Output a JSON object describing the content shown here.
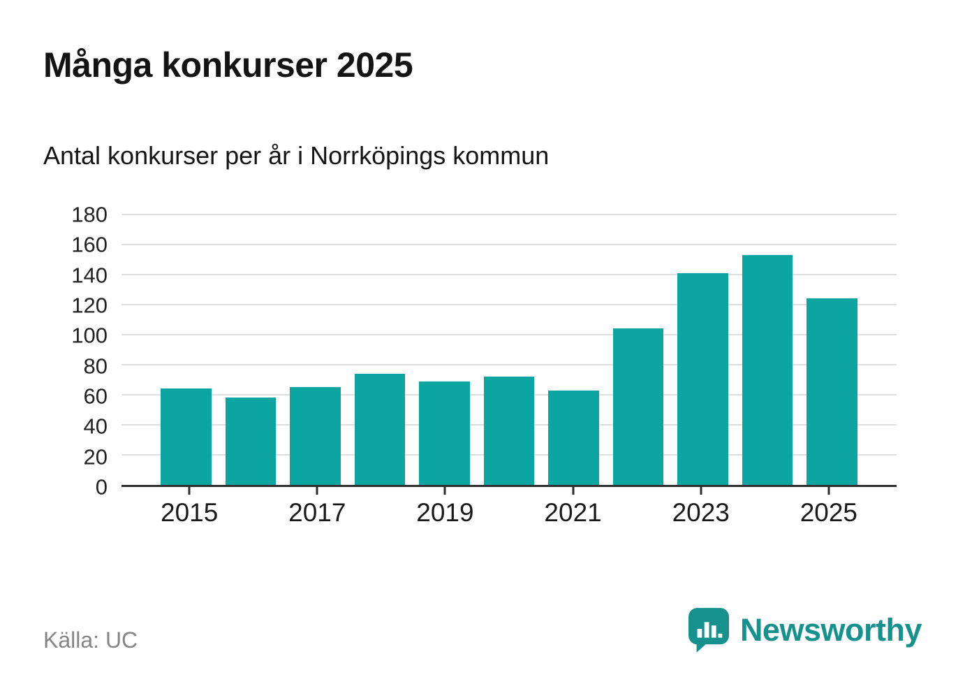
{
  "header": {
    "title": "Många konkurser 2025",
    "subtitle": "Antal konkurser per år i Norrköpings kommun"
  },
  "chart_data": {
    "type": "bar",
    "title": "Många konkurser 2025",
    "subtitle": "Antal konkurser per år i Norrköpings kommun",
    "categories": [
      "2015",
      "2016",
      "2017",
      "2018",
      "2019",
      "2020",
      "2021",
      "2022",
      "2023",
      "2024",
      "2025"
    ],
    "values": [
      64,
      58,
      65,
      74,
      69,
      72,
      63,
      104,
      141,
      153,
      124
    ],
    "xlabel": "",
    "ylabel": "",
    "ylim": [
      0,
      180
    ],
    "yticks": [
      0,
      20,
      40,
      60,
      80,
      100,
      120,
      140,
      160,
      180
    ],
    "xtick_labels": [
      "2015",
      "2017",
      "2019",
      "2021",
      "2023",
      "2025"
    ],
    "grid": "horizontal",
    "legend": "none"
  },
  "footer": {
    "source": "Källa: UC"
  },
  "brand": {
    "name": "Newsworthy",
    "icon": "speech-bubble-bar-chart-icon"
  },
  "colors": {
    "bar": "#0da5a1",
    "brand": "#16918e",
    "grid": "#dedede",
    "axis": "#2e2e2e",
    "muted": "#858585"
  }
}
